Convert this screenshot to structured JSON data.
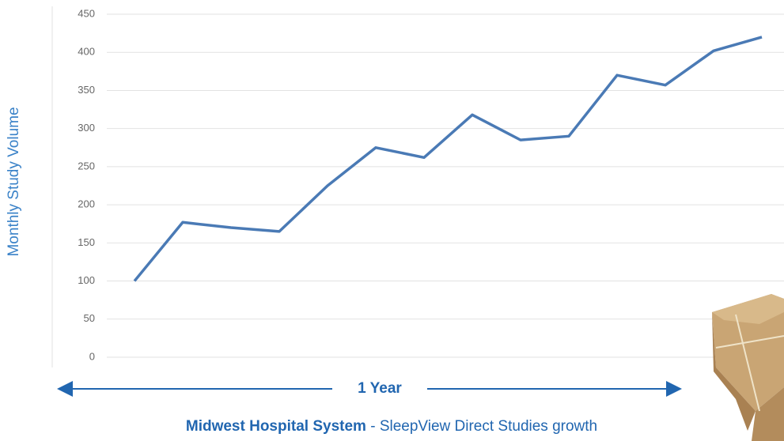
{
  "chart_data": {
    "type": "line",
    "ylabel": "Monthly Study Volume",
    "categories": [
      null,
      null,
      null,
      null,
      null,
      null,
      null,
      null,
      null,
      null,
      null,
      null,
      null,
      null
    ],
    "values": [
      100,
      177,
      170,
      165,
      225,
      275,
      262,
      318,
      285,
      290,
      370,
      357,
      402,
      420
    ],
    "color": "#4a7ab5",
    "ylim": [
      0,
      450
    ],
    "yticks": [
      0,
      50,
      100,
      150,
      200,
      250,
      300,
      350,
      400,
      450
    ],
    "grid": true,
    "span_label": "1 Year",
    "caption": {
      "bold": "Midwest Hospital System",
      "text": "- SleepView Direct Studies growth"
    }
  }
}
